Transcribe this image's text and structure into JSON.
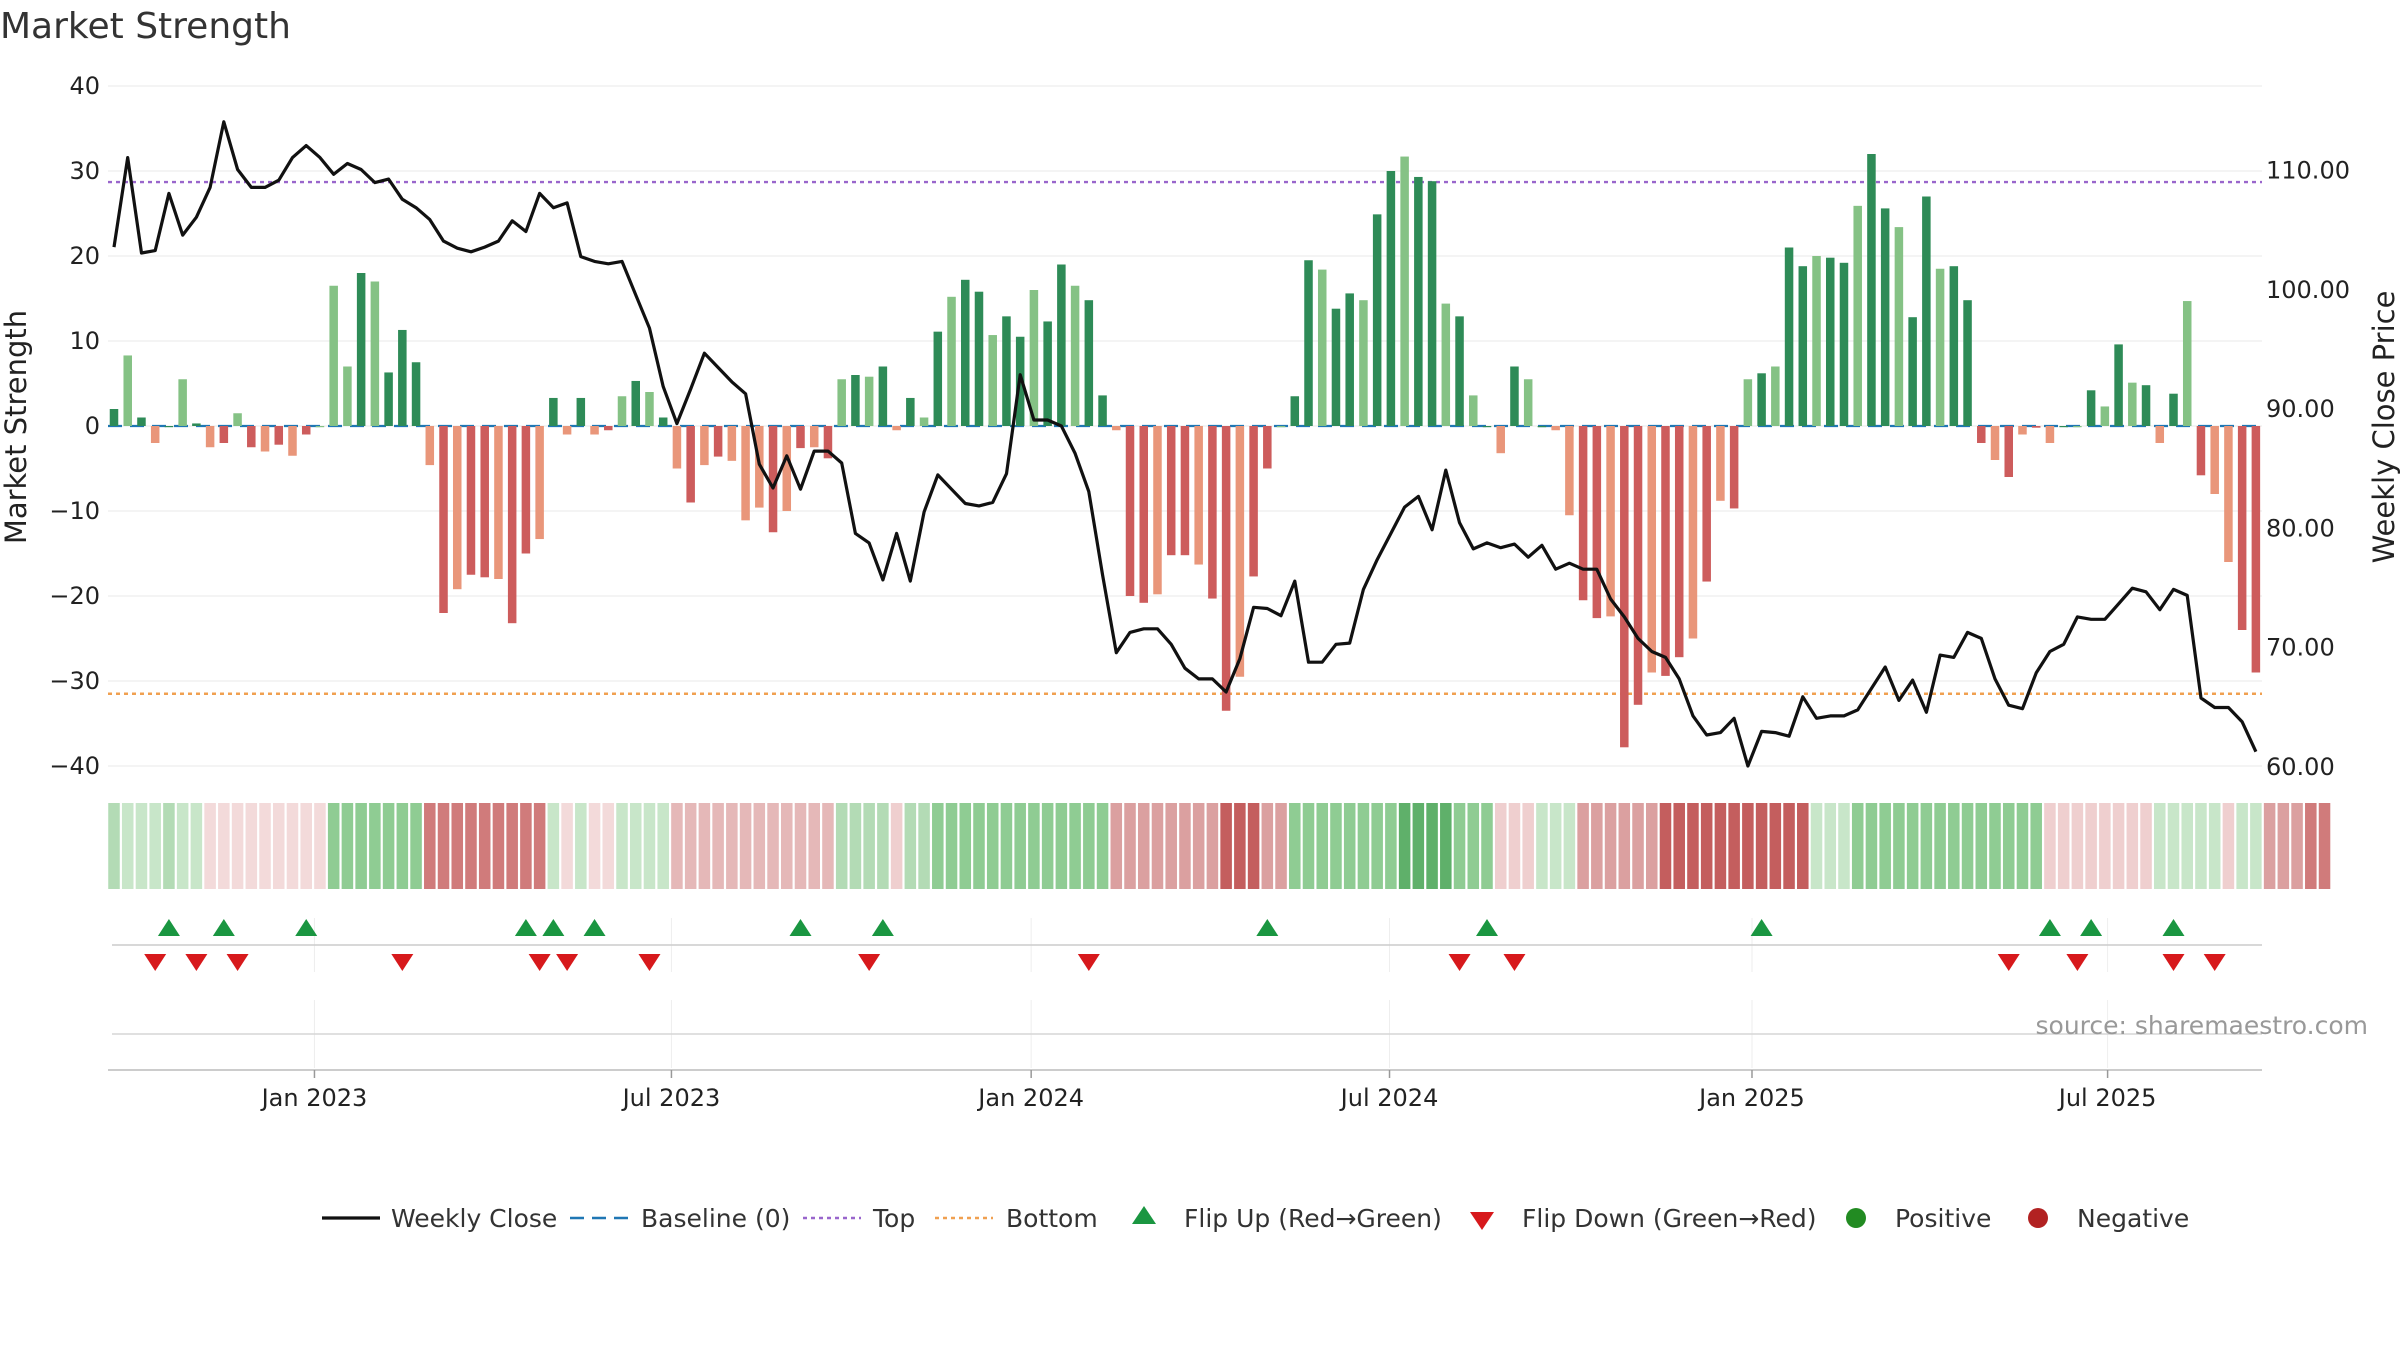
{
  "chart_data": {
    "type": "bar+line",
    "title": "Market Strength",
    "ylabel_left": "Market Strength",
    "ylabel_right": "Weekly Close Price",
    "ylim_left": [
      -40,
      40
    ],
    "ylim_right": [
      60,
      117
    ],
    "yticks_left": [
      "40",
      "30",
      "20",
      "10",
      "0",
      "−10",
      "−20",
      "−30",
      "−40"
    ],
    "yticks_left_values": [
      40,
      30,
      20,
      10,
      0,
      -10,
      -20,
      -30,
      -40
    ],
    "yticks_right": [
      "110.00",
      "100.00",
      "90.00",
      "80.00",
      "70.00",
      "60.00"
    ],
    "yticks_right_values": [
      110,
      100,
      90,
      80,
      70,
      60
    ],
    "top_line": 28.7,
    "bottom_line": -31.5,
    "week_count": 158,
    "x_tick_labels": [
      "Jan 2023",
      "Jul 2023",
      "Jan 2024",
      "Jul 2024",
      "Jan 2025",
      "Jul 2025"
    ],
    "x_tick_weeks": [
      14.6,
      40.6,
      66.8,
      92.9,
      119.3,
      145.2
    ],
    "strength": [
      2,
      8.3,
      1,
      -2,
      0,
      5.5,
      0.3,
      -2.5,
      -2,
      1.5,
      -2.5,
      -3,
      -2.2,
      -3.5,
      -1,
      0,
      16.5,
      7,
      18,
      17,
      6.3,
      11.3,
      7.5,
      -4.6,
      -22,
      -19.2,
      -17.5,
      -17.8,
      -18,
      -23.2,
      -15,
      -13.3,
      3.3,
      -1,
      3.3,
      -1,
      -0.5,
      3.5,
      5.3,
      4,
      1,
      -5,
      -9,
      -4.6,
      -3.6,
      -4.1,
      -11.1,
      -9.6,
      -12.5,
      -10,
      -2.6,
      -2.5,
      -3.8,
      5.5,
      6,
      5.8,
      7,
      -0.5,
      3.3,
      1,
      11.1,
      15.2,
      17.2,
      15.8,
      10.7,
      12.9,
      10.5,
      16,
      12.3,
      19,
      16.5,
      14.8,
      3.6,
      -0.5,
      -20,
      -20.8,
      -19.8,
      -15.2,
      -15.2,
      -16.3,
      -20.3,
      -33.5,
      -29.5,
      -17.7,
      -5,
      0,
      3.5,
      19.5,
      18.4,
      13.8,
      15.6,
      14.8,
      24.9,
      30,
      31.7,
      29.3,
      28.8,
      14.4,
      12.9,
      3.6,
      0,
      -3.2,
      7,
      5.5,
      0,
      -0.5,
      -10.5,
      -20.5,
      -22.6,
      -22.4,
      -37.8,
      -32.8,
      -29,
      -29.4,
      -27.2,
      -25,
      -18.3,
      -8.8,
      -9.7,
      5.5,
      6.2,
      7,
      21,
      18.8,
      20,
      19.8,
      19.2,
      25.9,
      32,
      25.6,
      23.4,
      12.8,
      27,
      18.5,
      18.8,
      14.8,
      -2,
      -4,
      -6,
      -1,
      -0.2,
      -2,
      0,
      0,
      4.2,
      2.3,
      9.6,
      5.1,
      4.8,
      -2,
      3.8,
      14.7,
      -5.8,
      -8,
      -16,
      -24,
      -29
    ],
    "close": [
      103.5,
      111,
      103,
      103.2,
      108,
      104.5,
      106,
      108.5,
      114,
      110,
      108.5,
      108.5,
      109.1,
      111,
      112,
      111,
      109.6,
      110.5,
      110,
      108.9,
      109.2,
      107.5,
      106.8,
      105.8,
      104,
      103.4,
      103.1,
      103.5,
      104,
      105.7,
      104.8,
      108,
      106.8,
      107.2,
      102.7,
      102.3,
      102.1,
      102.3,
      99.5,
      96.7,
      91.8,
      88.7,
      91.6,
      94.6,
      93.4,
      92.2,
      91.2,
      85.3,
      83.3,
      86,
      83.2,
      86.4,
      86.4,
      85.4,
      79.5,
      78.7,
      75.6,
      79.5,
      75.5,
      81.3,
      84.4,
      83.2,
      82,
      81.8,
      82.1,
      84.5,
      92.8,
      89,
      89,
      88.5,
      86.2,
      83,
      76,
      69.5,
      71.2,
      71.5,
      71.5,
      70.2,
      68.2,
      67.3,
      67.3,
      66.2,
      69,
      73.3,
      73.2,
      72.6,
      75.5,
      68.7,
      68.7,
      70.2,
      70.3,
      74.8,
      77.3,
      79.5,
      81.7,
      82.6,
      79.8,
      84.8,
      80.4,
      78.2,
      78.7,
      78.3,
      78.6,
      77.5,
      78.5,
      76.5,
      77,
      76.5,
      76.5,
      74,
      72.5,
      70.7,
      69.6,
      69.1,
      67.3,
      64.2,
      62.6,
      62.8,
      64,
      60,
      62.9,
      62.8,
      62.5,
      65.8,
      64,
      64.2,
      64.2,
      64.7,
      66.5,
      68.3,
      65.5,
      67.2,
      64.5,
      69.3,
      69.1,
      71.2,
      70.7,
      67.3,
      65.1,
      64.8,
      67.8,
      69.6,
      70.2,
      72.5,
      72.3,
      72.3,
      73.6,
      74.9,
      74.6,
      73.1,
      74.8,
      74.3,
      65.7,
      64.9,
      64.9,
      63.7,
      61.2
    ],
    "strip": [
      2,
      1,
      1,
      1,
      2,
      1,
      1,
      0,
      0,
      0,
      0,
      0,
      0,
      0,
      0,
      0,
      3,
      3,
      3,
      3,
      3,
      3,
      3,
      -4,
      -4,
      -4,
      -4,
      -4,
      -4,
      -4,
      -4,
      -4,
      1,
      0,
      1,
      0,
      0,
      1,
      1,
      1,
      1,
      -2,
      -2,
      -2,
      -2,
      -2,
      -2,
      -2,
      -2,
      -2,
      -2,
      -2,
      -2,
      2,
      2,
      2,
      2,
      -1,
      2,
      2,
      3,
      3,
      3,
      3,
      3,
      3,
      3,
      3,
      3,
      3,
      3,
      3,
      3,
      -3,
      -3,
      -3,
      -3,
      -3,
      -3,
      -3,
      -3,
      -5,
      -5,
      -5,
      -3,
      -3,
      3,
      3,
      3,
      3,
      3,
      3,
      3,
      3,
      4,
      4,
      4,
      4,
      3,
      3,
      3,
      -1,
      -1,
      -1,
      1,
      1,
      1,
      -3,
      -3,
      -3,
      -3,
      -3,
      -3,
      -5,
      -5,
      -5,
      -5,
      -5,
      -5,
      -5,
      -5,
      -5,
      -5,
      -5,
      1,
      1,
      1,
      3,
      3,
      3,
      3,
      3,
      3,
      3,
      3,
      3,
      3,
      3,
      3,
      3,
      3,
      -1,
      -1,
      -1,
      -1,
      -1,
      -1,
      -1,
      -1,
      1,
      1,
      1,
      1,
      1,
      -1,
      1,
      1,
      -3,
      -3,
      -3,
      -4,
      -4
    ],
    "flip_up": [
      4,
      8,
      14,
      30,
      32,
      35,
      50,
      56,
      84,
      100,
      120,
      141,
      144,
      150
    ],
    "flip_down": [
      3,
      6,
      9,
      21,
      31,
      33,
      39,
      55,
      71,
      98,
      102,
      138,
      143,
      150,
      153
    ],
    "legend": [
      {
        "label": "Weekly Close",
        "symbol": "line"
      },
      {
        "label": "Baseline (0)",
        "symbol": "dash"
      },
      {
        "label": "Top",
        "symbol": "dot-purple"
      },
      {
        "label": "Bottom",
        "symbol": "dot-orange"
      },
      {
        "label": "Flip Up (Red→Green)",
        "symbol": "tri-up"
      },
      {
        "label": "Flip Down (Green→Red)",
        "symbol": "tri-down"
      },
      {
        "label": "Positive",
        "symbol": "circle-green"
      },
      {
        "label": "Negative",
        "symbol": "circle-red"
      }
    ],
    "source": "source: sharemaestro.com"
  },
  "colors": {
    "pos_dark": "#2e8b57",
    "pos_light": "#85c285",
    "neg_dark": "#cd5c5c",
    "neg_light": "#e9967a",
    "line": "#111111",
    "top": "#9966cc",
    "bottom": "#f0a050",
    "baseline": "#1f77b4",
    "flip_up": "#1a9641",
    "flip_down": "#d7191c",
    "positive": "#228b22",
    "negative": "#b22222"
  }
}
